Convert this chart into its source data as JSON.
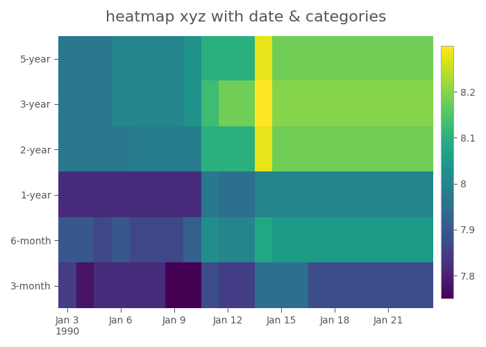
{
  "title": "heatmap xyz with date & categories",
  "categories": [
    "5-year",
    "3-year",
    "2-year",
    "1-year",
    "6-month",
    "3-month"
  ],
  "date_labels": [
    "Jan 3\n1990",
    "Jan 6",
    "Jan 9",
    "Jan 12",
    "Jan 15",
    "Jan 18",
    "Jan 21"
  ],
  "colormap": "viridis",
  "vmin": 7.75,
  "vmax": 8.3,
  "colorbar_ticks": [
    7.8,
    7.9,
    8.0,
    8.1,
    8.2
  ],
  "background_color": "#ffffff",
  "title_color": "#555555",
  "tick_color": "#555555",
  "title_fontsize": 16,
  "tick_fontsize": 10,
  "data": [
    [
      7.97,
      7.97,
      7.97,
      8.0,
      8.0,
      8.0,
      8.0,
      8.03,
      8.1,
      8.1,
      8.1,
      8.28,
      8.18,
      8.18,
      8.18,
      8.18,
      8.18,
      8.18,
      8.18,
      8.18,
      8.18
    ],
    [
      7.97,
      7.97,
      7.97,
      8.0,
      8.0,
      8.0,
      8.0,
      8.03,
      8.13,
      8.18,
      8.18,
      8.3,
      8.2,
      8.2,
      8.2,
      8.2,
      8.2,
      8.2,
      8.2,
      8.2,
      8.2
    ],
    [
      7.97,
      7.97,
      7.97,
      7.97,
      7.98,
      7.98,
      7.98,
      7.98,
      8.1,
      8.1,
      8.1,
      8.28,
      8.18,
      8.18,
      8.18,
      8.18,
      8.18,
      8.18,
      8.18,
      8.18,
      8.18
    ],
    [
      7.82,
      7.82,
      7.82,
      7.82,
      7.82,
      7.82,
      7.82,
      7.82,
      7.97,
      7.95,
      7.95,
      8.0,
      8.0,
      8.0,
      8.0,
      8.0,
      8.0,
      8.0,
      8.0,
      8.0,
      8.0
    ],
    [
      7.9,
      7.9,
      7.87,
      7.9,
      7.87,
      7.87,
      7.87,
      7.92,
      8.02,
      8.0,
      8.0,
      8.08,
      8.05,
      8.05,
      8.05,
      8.05,
      8.05,
      8.05,
      8.05,
      8.05,
      8.05
    ],
    [
      7.85,
      7.78,
      7.82,
      7.82,
      7.82,
      7.82,
      7.75,
      7.75,
      7.88,
      7.85,
      7.85,
      7.95,
      7.95,
      7.95,
      7.88,
      7.88,
      7.88,
      7.88,
      7.88,
      7.88,
      7.88
    ]
  ],
  "n_cols": 21,
  "tick_col_positions": [
    0,
    3,
    6,
    9,
    12,
    15,
    18
  ]
}
